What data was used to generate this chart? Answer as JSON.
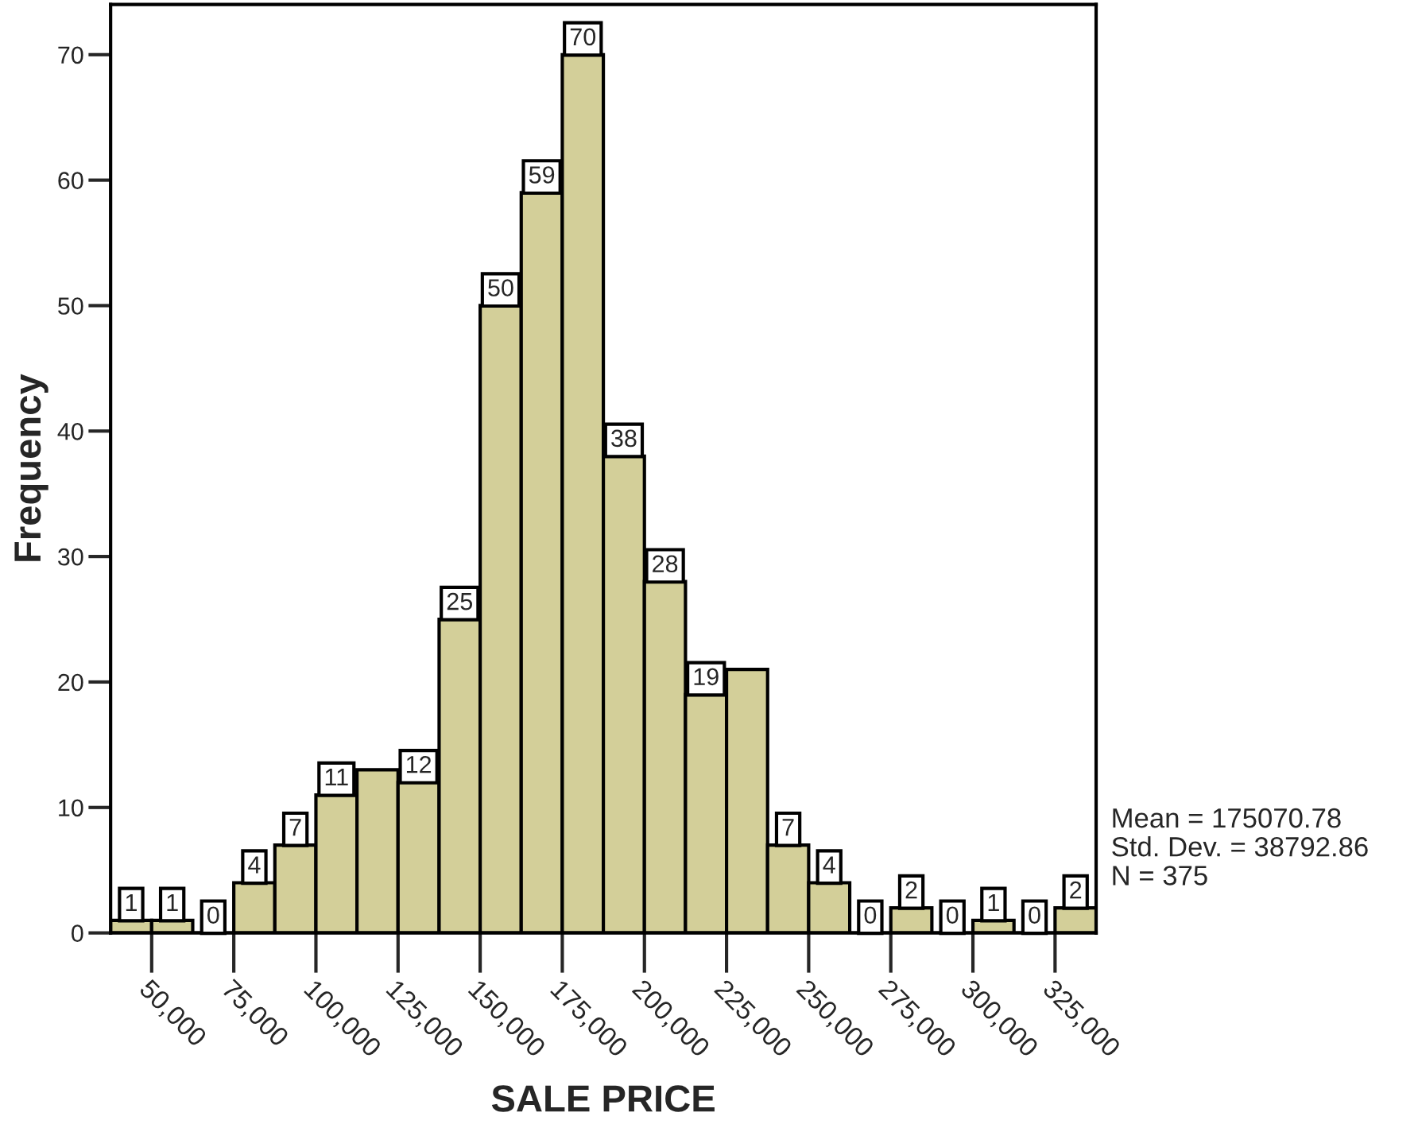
{
  "chart_data": {
    "type": "histogram",
    "xlabel": "SALE PRICE",
    "ylabel": "Frequency",
    "bins": [
      37500,
      50000,
      62500,
      75000,
      87500,
      100000,
      112500,
      125000,
      137500,
      150000,
      162500,
      175000,
      187500,
      200000,
      212500,
      225000,
      237500,
      250000,
      262500,
      275000,
      287500,
      300000,
      312500,
      325000,
      337500
    ],
    "values": [
      1,
      1,
      0,
      4,
      7,
      11,
      13,
      12,
      25,
      50,
      59,
      70,
      38,
      28,
      19,
      21,
      7,
      4,
      0,
      2,
      0,
      1,
      0,
      2
    ],
    "value_labels": [
      "1",
      "1",
      "0",
      "4",
      "7",
      "11",
      null,
      "12",
      "25",
      "50",
      "59",
      "70",
      "38",
      "28",
      "19",
      null,
      "7",
      "4",
      "0",
      "2",
      "0",
      "1",
      "0",
      "2"
    ],
    "color": "#d3cf99",
    "xlim": [
      37500,
      337500
    ],
    "xticks": [
      {
        "value": 50000,
        "label": "50,000"
      },
      {
        "value": 75000,
        "label": "75,000"
      },
      {
        "value": 100000,
        "label": "100,000"
      },
      {
        "value": 125000,
        "label": "125,000"
      },
      {
        "value": 150000,
        "label": "150,000"
      },
      {
        "value": 175000,
        "label": "175,000"
      },
      {
        "value": 200000,
        "label": "200,000"
      },
      {
        "value": 225000,
        "label": "225,000"
      },
      {
        "value": 250000,
        "label": "250,000"
      },
      {
        "value": 275000,
        "label": "275,000"
      },
      {
        "value": 300000,
        "label": "300,000"
      },
      {
        "value": 325000,
        "label": "325,000"
      }
    ],
    "ylim": [
      0,
      74
    ],
    "yticks": [
      0,
      10,
      20,
      30,
      40,
      50,
      60,
      70
    ],
    "grid": false,
    "annotations": [
      "Mean = 175070.78\nStd. Dev. = 38792.86\nN = 375"
    ]
  }
}
